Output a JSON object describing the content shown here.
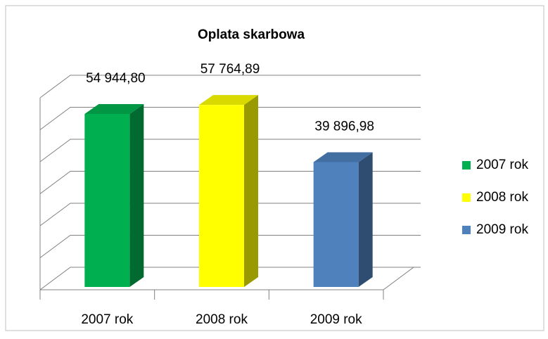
{
  "chart_data": {
    "type": "bar3d",
    "title": "Oplata skarbowa",
    "categories": [
      "2007 rok",
      "2008 rok",
      "2009 rok"
    ],
    "values": [
      54944.8,
      57764.89,
      39896.98
    ],
    "value_labels": [
      "54 944,80",
      "57 764,89",
      "39 896,98"
    ],
    "colors": [
      "#00b050",
      "#ffff00",
      "#4f81bd"
    ],
    "ylim": [
      0,
      60000
    ],
    "yticks": [
      0,
      10000,
      20000,
      30000,
      40000,
      50000,
      60000
    ],
    "grid": true,
    "legend": "right"
  }
}
